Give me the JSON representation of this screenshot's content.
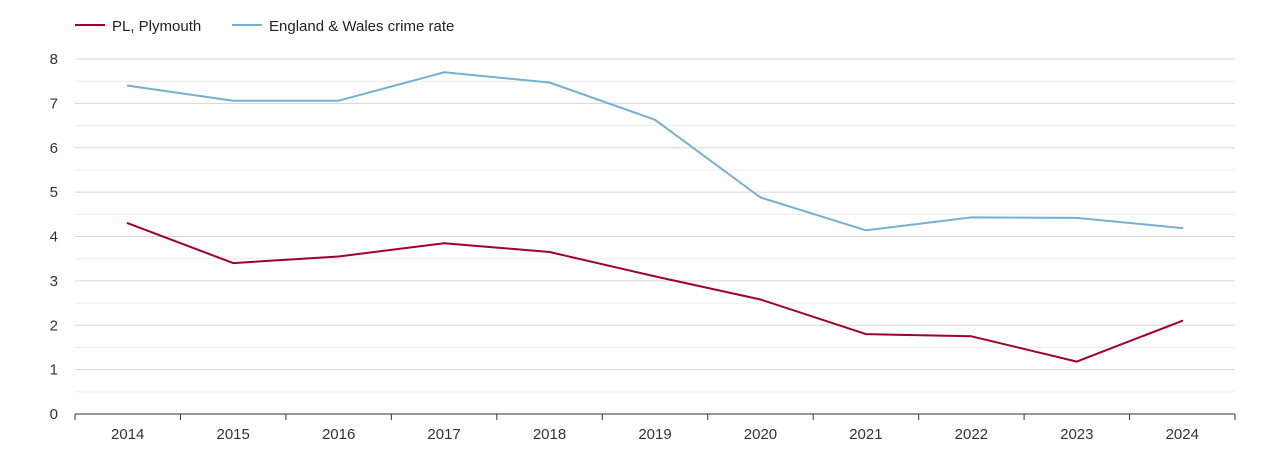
{
  "chart_data": {
    "type": "line",
    "title": "",
    "xlabel": "",
    "ylabel": "",
    "x": [
      "2014",
      "2015",
      "2016",
      "2017",
      "2018",
      "2019",
      "2020",
      "2021",
      "2022",
      "2023",
      "2024"
    ],
    "ylim": [
      0,
      8
    ],
    "yticks": [
      0,
      1,
      2,
      3,
      4,
      5,
      6,
      7,
      8
    ],
    "grid": true,
    "legend_position": "top-left",
    "series": [
      {
        "name": "PL, Plymouth",
        "color": "#a0002c",
        "values": [
          4.3,
          3.4,
          3.55,
          3.85,
          3.65,
          3.1,
          2.58,
          1.8,
          1.75,
          1.18,
          2.1
        ]
      },
      {
        "name": "England & Wales crime rate",
        "color": "#76b0d0",
        "values": [
          7.4,
          7.06,
          7.06,
          7.7,
          7.47,
          6.63,
          4.88,
          4.14,
          4.43,
          4.42,
          4.19
        ]
      }
    ]
  }
}
